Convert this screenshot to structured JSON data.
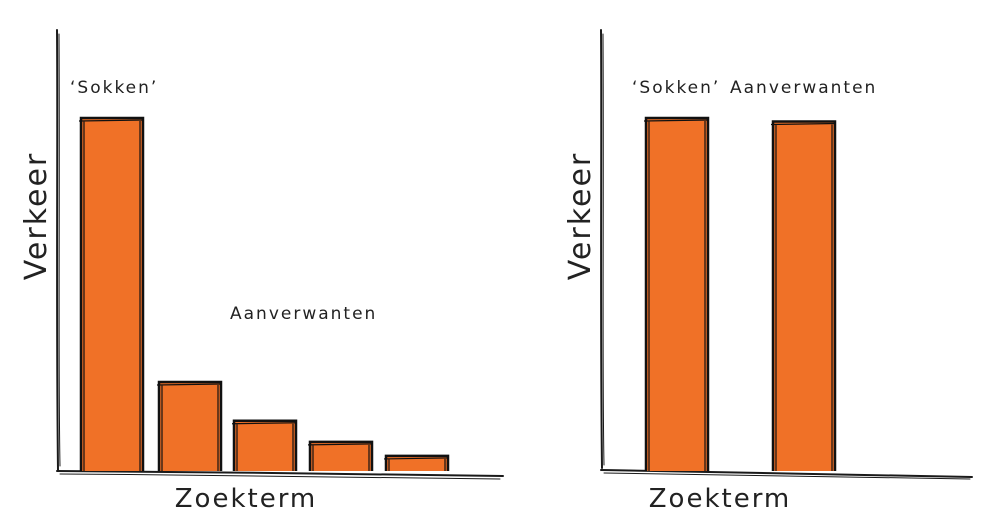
{
  "colors": {
    "bar": "#f07127",
    "ink": "#1a1a1a"
  },
  "chart_data": [
    {
      "type": "bar",
      "ylabel": "Verkeer",
      "xlabel": "Zoekterm",
      "annotations": [
        "‘Sokken’",
        "Aanverwanten"
      ],
      "categories": [
        "",
        "",
        "",
        "",
        ""
      ],
      "values": [
        100,
        25,
        14,
        8,
        4
      ],
      "ylim": [
        0,
        125
      ],
      "grid": false
    },
    {
      "type": "bar",
      "ylabel": "Verkeer",
      "xlabel": "Zoekterm",
      "annotations": [
        "‘Sokken’",
        "Aanverwanten"
      ],
      "categories": [
        "‘Sokken’",
        "Aanverwanten"
      ],
      "values": [
        100,
        99
      ],
      "ylim": [
        0,
        125
      ],
      "grid": false
    }
  ]
}
